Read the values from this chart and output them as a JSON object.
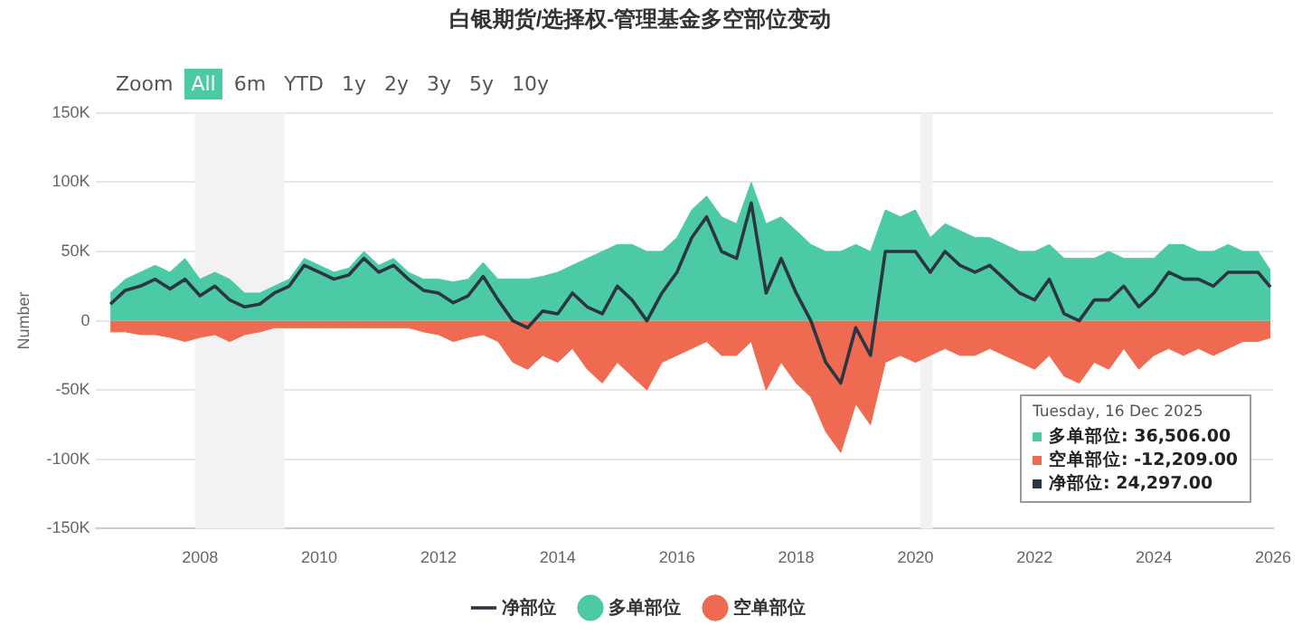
{
  "chart_data": {
    "type": "area",
    "title": "白银期货/选择权-管理基金多空部位变动",
    "ylabel": "Number",
    "x": [
      "2006-07-01",
      "2006-10-01",
      "2007-01-01",
      "2007-04-01",
      "2007-07-01",
      "2007-10-01",
      "2008-01-01",
      "2008-04-01",
      "2008-07-01",
      "2008-10-01",
      "2009-01-01",
      "2009-04-01",
      "2009-07-01",
      "2009-10-01",
      "2010-01-01",
      "2010-04-01",
      "2010-07-01",
      "2010-10-01",
      "2011-01-01",
      "2011-04-01",
      "2011-07-01",
      "2011-10-01",
      "2012-01-01",
      "2012-04-01",
      "2012-07-01",
      "2012-10-01",
      "2013-01-01",
      "2013-04-01",
      "2013-07-01",
      "2013-10-01",
      "2014-01-01",
      "2014-04-01",
      "2014-07-01",
      "2014-10-01",
      "2015-01-01",
      "2015-04-01",
      "2015-07-01",
      "2015-10-01",
      "2016-01-01",
      "2016-04-01",
      "2016-07-01",
      "2016-10-01",
      "2017-01-01",
      "2017-04-01",
      "2017-07-01",
      "2017-10-01",
      "2018-01-01",
      "2018-04-01",
      "2018-07-01",
      "2018-10-01",
      "2019-01-01",
      "2019-04-01",
      "2019-07-01",
      "2019-10-01",
      "2020-01-01",
      "2020-04-01",
      "2020-07-01",
      "2020-10-01",
      "2021-01-01",
      "2021-04-01",
      "2021-07-01",
      "2021-10-01",
      "2022-01-01",
      "2022-04-01",
      "2022-07-01",
      "2022-10-01",
      "2023-01-01",
      "2023-04-01",
      "2023-07-01",
      "2023-10-01",
      "2024-01-01",
      "2024-04-01",
      "2024-07-01",
      "2024-10-01",
      "2025-01-01",
      "2025-04-01",
      "2025-07-01",
      "2025-10-01",
      "2025-12-16"
    ],
    "series": [
      {
        "name": "多单部位",
        "type": "area",
        "color": "#4ccaa5",
        "values": [
          20000,
          30000,
          35000,
          40000,
          35000,
          45000,
          30000,
          35000,
          30000,
          20000,
          20000,
          25000,
          30000,
          45000,
          40000,
          35000,
          38000,
          50000,
          40000,
          45000,
          35000,
          30000,
          30000,
          28000,
          30000,
          42000,
          30000,
          30000,
          30000,
          32000,
          35000,
          40000,
          45000,
          50000,
          55000,
          55000,
          50000,
          50000,
          60000,
          80000,
          90000,
          75000,
          70000,
          100000,
          70000,
          75000,
          65000,
          55000,
          50000,
          50000,
          55000,
          50000,
          80000,
          75000,
          80000,
          60000,
          70000,
          65000,
          60000,
          60000,
          55000,
          50000,
          50000,
          55000,
          45000,
          45000,
          45000,
          50000,
          45000,
          45000,
          45000,
          55000,
          55000,
          50000,
          50000,
          55000,
          50000,
          50000,
          36506
        ]
      },
      {
        "name": "空单部位",
        "type": "area",
        "color": "#ee6b52",
        "values": [
          -8000,
          -8000,
          -10000,
          -10000,
          -12000,
          -15000,
          -12000,
          -10000,
          -15000,
          -10000,
          -8000,
          -5000,
          -5000,
          -5000,
          -5000,
          -5000,
          -5000,
          -5000,
          -5000,
          -5000,
          -5000,
          -8000,
          -10000,
          -15000,
          -12000,
          -10000,
          -15000,
          -30000,
          -35000,
          -25000,
          -30000,
          -20000,
          -35000,
          -45000,
          -30000,
          -40000,
          -50000,
          -30000,
          -25000,
          -20000,
          -15000,
          -25000,
          -25000,
          -15000,
          -50000,
          -30000,
          -45000,
          -55000,
          -80000,
          -95000,
          -60000,
          -75000,
          -30000,
          -25000,
          -30000,
          -25000,
          -20000,
          -25000,
          -25000,
          -20000,
          -25000,
          -30000,
          -35000,
          -25000,
          -40000,
          -45000,
          -30000,
          -35000,
          -20000,
          -35000,
          -25000,
          -20000,
          -25000,
          -20000,
          -25000,
          -20000,
          -15000,
          -15000,
          -12209
        ]
      },
      {
        "name": "净部位",
        "type": "line",
        "color": "#2b3640",
        "values": [
          12000,
          22000,
          25000,
          30000,
          23000,
          30000,
          18000,
          25000,
          15000,
          10000,
          12000,
          20000,
          25000,
          40000,
          35000,
          30000,
          33000,
          45000,
          35000,
          40000,
          30000,
          22000,
          20000,
          13000,
          18000,
          32000,
          15000,
          0,
          -5000,
          7000,
          5000,
          20000,
          10000,
          5000,
          25000,
          15000,
          0,
          20000,
          35000,
          60000,
          75000,
          50000,
          45000,
          85000,
          20000,
          45000,
          20000,
          0,
          -30000,
          -45000,
          -5000,
          -25000,
          50000,
          50000,
          50000,
          35000,
          50000,
          40000,
          35000,
          40000,
          30000,
          20000,
          15000,
          30000,
          5000,
          0,
          15000,
          15000,
          25000,
          10000,
          20000,
          35000,
          30000,
          30000,
          25000,
          35000,
          35000,
          35000,
          24297
        ]
      }
    ],
    "xlim": [
      "2006-04-01",
      "2026-01-01"
    ],
    "xticks": [
      "2008",
      "2010",
      "2012",
      "2014",
      "2016",
      "2018",
      "2020",
      "2022",
      "2024",
      "2026"
    ],
    "ylim": [
      -150000,
      150000
    ],
    "yticks": [
      {
        "value": -150000,
        "label": "-150K"
      },
      {
        "value": -100000,
        "label": "-100K"
      },
      {
        "value": -50000,
        "label": "-50K"
      },
      0,
      {
        "value": 50000,
        "label": "50K"
      },
      {
        "value": 100000,
        "label": "100K"
      },
      {
        "value": 150000,
        "label": "150K"
      }
    ],
    "bands": [
      {
        "axis": "x",
        "from": "2007-12-01",
        "to": "2009-06-01",
        "color": "#f2f2f2"
      },
      {
        "axis": "x",
        "from": "2020-02-01",
        "to": "2020-04-15",
        "color": "#f2f2f2"
      }
    ],
    "grid": "y",
    "legend": "bottom",
    "marker": "none",
    "line_style": "solid",
    "annotations": [
      "Zoom",
      "All",
      "6m",
      "YTD",
      "1y",
      "2y",
      "3y",
      "5y",
      "10y",
      "Tuesday, 16 Dec 2025",
      "多单部位: 36,506.00",
      "空单部位: -12,209.00",
      "净部位: 24,297.00"
    ]
  }
}
